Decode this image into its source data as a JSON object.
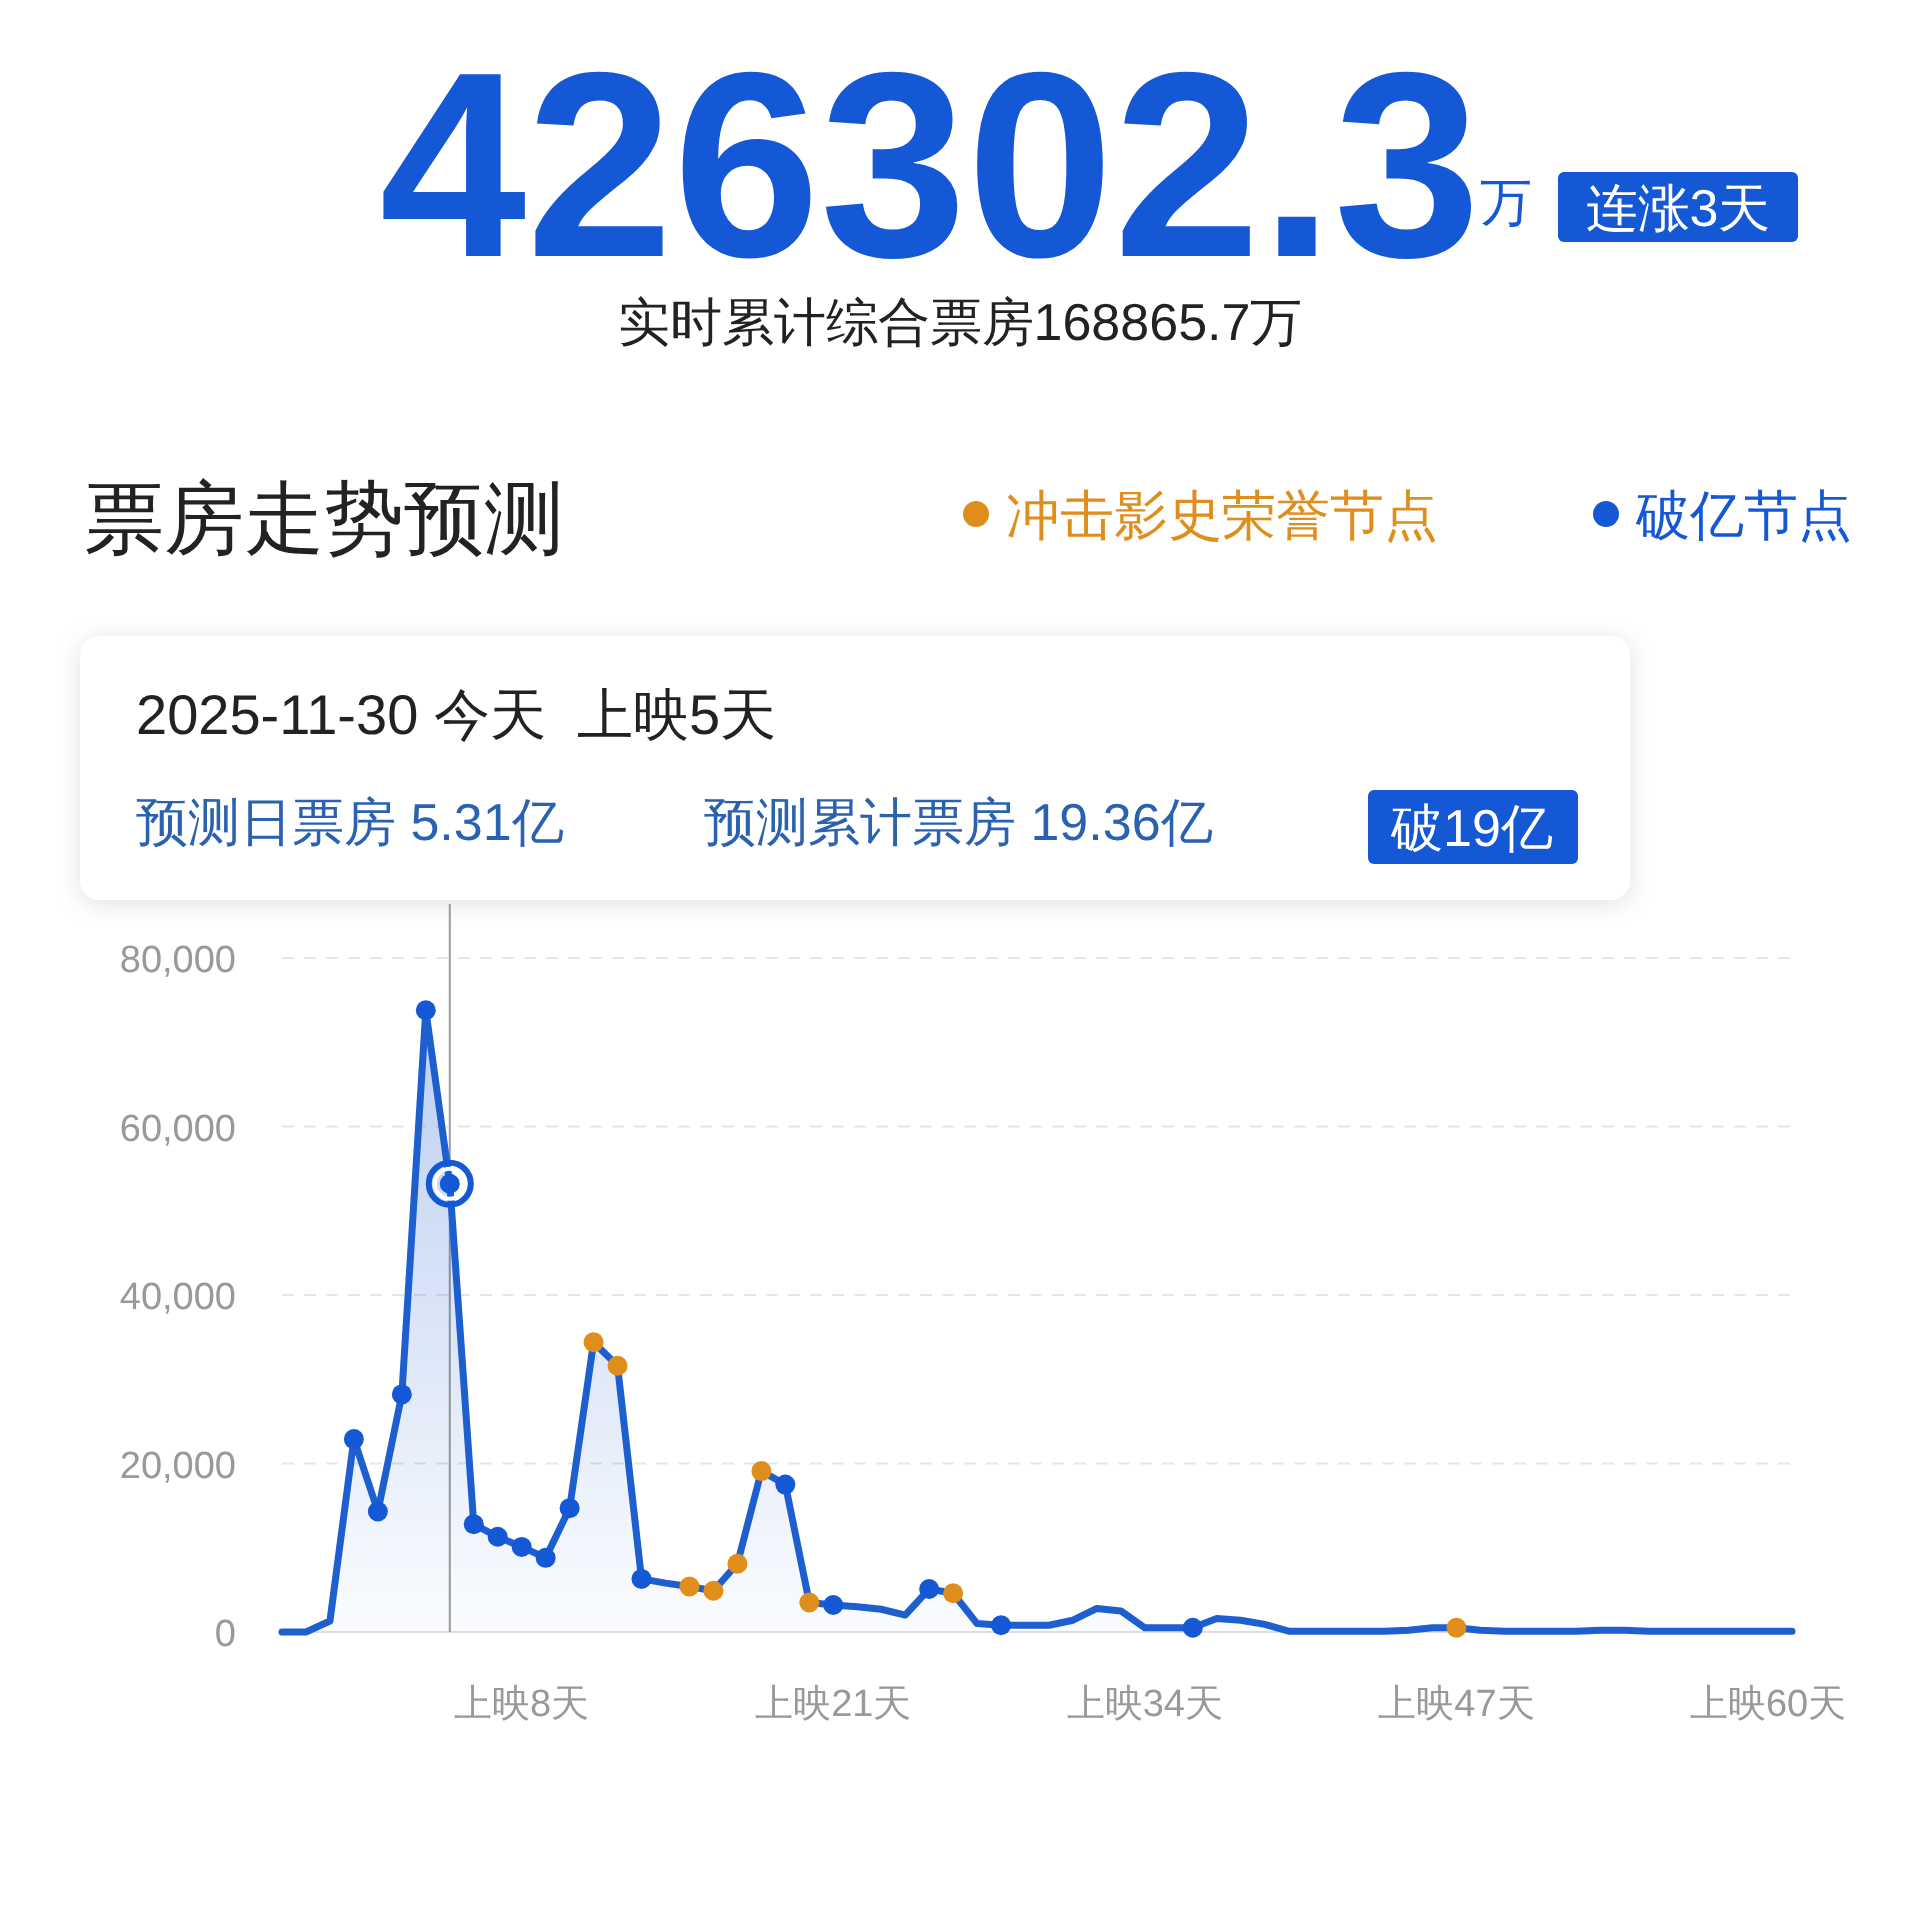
{
  "chart_data": {
    "type": "area",
    "title": "票房走势预测",
    "annotations": [
      "426302.3",
      "万",
      "连涨3天",
      "实时累计综合票房168865.7万",
      "2025-11-30 今天  上映5天",
      "预测日票房 5.31亿",
      "预测累计票房 19.36亿",
      "破19亿"
    ],
    "categories": [
      null,
      null,
      null,
      null,
      null,
      null,
      null,
      null,
      null,
      null,
      "上映8天",
      null,
      null,
      null,
      null,
      null,
      null,
      null,
      null,
      null,
      null,
      null,
      null,
      "上映21天",
      null,
      null,
      null,
      null,
      null,
      null,
      null,
      null,
      null,
      null,
      null,
      null,
      "上映34天",
      null,
      null,
      null,
      null,
      null,
      null,
      null,
      null,
      null,
      null,
      null,
      null,
      "上映47天",
      null,
      null,
      null,
      null,
      null,
      null,
      null,
      null,
      null,
      null,
      null,
      null,
      "上映60天",
      null
    ],
    "series": [
      {
        "color": "#1e5fcf",
        "marker": "none",
        "values": [
          0,
          0,
          1300,
          22900,
          14300,
          28200,
          73800,
          53200,
          12800,
          11300,
          10100,
          8800,
          14700,
          34400,
          31600,
          6300,
          5800,
          5400,
          4900,
          8100,
          19100,
          17500,
          3500,
          3200,
          3000,
          2700,
          2000,
          5100,
          4600,
          1000,
          800,
          800,
          800,
          1400,
          2800,
          2500,
          500,
          500,
          500,
          1600,
          1400,
          900,
          100,
          100,
          100,
          100,
          100,
          200,
          500,
          500,
          200,
          100,
          100,
          100,
          100,
          200,
          200,
          100,
          100,
          100,
          100,
          100,
          100,
          100
        ]
      },
      {
        "type": "scatter",
        "name": "冲击影史荣誉节点",
        "color": "#e08e1b",
        "values": [
          null,
          null,
          null,
          null,
          null,
          null,
          null,
          null,
          null,
          null,
          null,
          null,
          null,
          34400,
          31600,
          null,
          null,
          5400,
          4900,
          8100,
          19100,
          null,
          3500,
          null,
          null,
          null,
          null,
          null,
          4600,
          null,
          null,
          null,
          null,
          null,
          null,
          null,
          null,
          null,
          null,
          null,
          null,
          null,
          null,
          null,
          null,
          null,
          null,
          null,
          null,
          500,
          null,
          null,
          null,
          null,
          null,
          null,
          null,
          null,
          null,
          null,
          null,
          null,
          null,
          null
        ]
      },
      {
        "type": "scatter",
        "name": "破亿节点",
        "color": "#1558d6",
        "values": [
          null,
          null,
          null,
          22900,
          14300,
          28200,
          73800,
          53200,
          12800,
          11300,
          10100,
          8800,
          14700,
          null,
          null,
          6300,
          null,
          null,
          null,
          null,
          null,
          17500,
          null,
          3200,
          null,
          null,
          null,
          5100,
          null,
          null,
          800,
          null,
          null,
          null,
          null,
          null,
          null,
          null,
          500,
          null,
          null,
          null,
          null,
          null,
          null,
          null,
          null,
          null,
          null,
          null,
          null,
          null,
          null,
          null,
          null,
          null,
          null,
          null,
          null,
          null,
          null,
          null,
          null,
          null
        ]
      }
    ],
    "ylim": [
      0,
      80000
    ],
    "yticks": [
      {
        "value": 0,
        "label": "0"
      },
      {
        "value": 20000,
        "label": "20,000"
      },
      {
        "value": 40000,
        "label": "40,000"
      },
      {
        "value": 60000,
        "label": "60,000"
      },
      {
        "value": 80000,
        "label": "80,000"
      }
    ],
    "grid": "y",
    "legend": "top right",
    "marker": "circle",
    "line_style": "solid"
  }
}
